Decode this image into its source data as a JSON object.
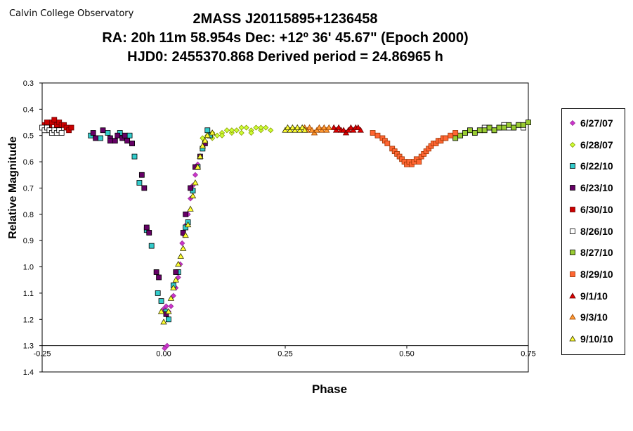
{
  "header": {
    "observatory": "Calvin College Observatory",
    "title_line1": "2MASS J20115895+1236458",
    "title_line2": "RA: 20h 11m 58.954s    Dec: +12º 36' 45.67\"  (Epoch 2000)",
    "title_line3": "HJD0: 2455370.868     Derived period = 24.86965 h"
  },
  "chart_data": {
    "type": "scatter",
    "title": "2MASS J20115895+1236458",
    "xlabel": "Phase",
    "ylabel": "Relative Magnitude",
    "xlim": [
      -0.25,
      0.75
    ],
    "ylim": [
      0.3,
      1.4
    ],
    "y_inverted": true,
    "x_ticks": [
      "-0.25",
      "0.00",
      "0.25",
      "0.50",
      "0.75"
    ],
    "y_ticks": [
      "0.3",
      "0.4",
      "0.5",
      "0.6",
      "0.7",
      "0.8",
      "0.9",
      "1.0",
      "1.1",
      "1.2",
      "1.3",
      "1.4"
    ],
    "grid": false,
    "legend_position": "right",
    "series": [
      {
        "name": "6/27/07",
        "marker": "diamond",
        "color": "#cc33cc",
        "stroke": "#993399",
        "points": [
          [
            0.002,
            1.31
          ],
          [
            0.007,
            1.3
          ],
          [
            0.0,
            1.16
          ],
          [
            0.005,
            1.15
          ],
          [
            0.01,
            1.17
          ],
          [
            0.015,
            1.15
          ],
          [
            0.02,
            1.11
          ],
          [
            0.025,
            1.08
          ],
          [
            0.03,
            1.04
          ],
          [
            0.034,
            0.99
          ],
          [
            0.038,
            0.91
          ],
          [
            0.042,
            0.88
          ],
          [
            0.046,
            0.84
          ],
          [
            0.05,
            0.8
          ],
          [
            0.055,
            0.74
          ],
          [
            0.06,
            0.69
          ],
          [
            0.065,
            0.65
          ],
          [
            0.07,
            0.61
          ]
        ]
      },
      {
        "name": "6/28/07",
        "marker": "diamond",
        "color": "#ccff33",
        "stroke": "#889900",
        "points": [
          [
            0.08,
            0.51
          ],
          [
            0.09,
            0.5
          ],
          [
            0.1,
            0.49
          ],
          [
            0.11,
            0.5
          ],
          [
            0.12,
            0.49
          ],
          [
            0.13,
            0.48
          ],
          [
            0.14,
            0.49
          ],
          [
            0.15,
            0.48
          ],
          [
            0.16,
            0.49
          ],
          [
            0.17,
            0.47
          ],
          [
            0.18,
            0.48
          ],
          [
            0.19,
            0.47
          ],
          [
            0.2,
            0.48
          ],
          [
            0.21,
            0.47
          ],
          [
            0.22,
            0.48
          ],
          [
            0.1,
            0.51
          ],
          [
            0.12,
            0.5
          ],
          [
            0.14,
            0.48
          ],
          [
            0.16,
            0.47
          ],
          [
            0.18,
            0.49
          ],
          [
            0.2,
            0.47
          ]
        ]
      },
      {
        "name": "6/22/10",
        "marker": "square",
        "color": "#33cccc",
        "stroke": "#000000",
        "points": [
          [
            -0.15,
            0.5
          ],
          [
            -0.13,
            0.51
          ],
          [
            -0.115,
            0.49
          ],
          [
            -0.09,
            0.49
          ],
          [
            -0.07,
            0.5
          ],
          [
            -0.065,
            0.53
          ],
          [
            -0.06,
            0.58
          ],
          [
            -0.05,
            0.68
          ],
          [
            -0.035,
            0.86
          ],
          [
            -0.025,
            0.92
          ],
          [
            -0.012,
            1.1
          ],
          [
            -0.005,
            1.13
          ],
          [
            0.005,
            1.17
          ],
          [
            0.01,
            1.2
          ],
          [
            0.02,
            1.07
          ],
          [
            0.03,
            1.02
          ],
          [
            0.045,
            0.85
          ],
          [
            0.05,
            0.83
          ],
          [
            0.06,
            0.71
          ],
          [
            0.07,
            0.62
          ],
          [
            0.08,
            0.55
          ],
          [
            0.09,
            0.48
          ],
          [
            0.095,
            0.5
          ]
        ]
      },
      {
        "name": "6/23/10",
        "marker": "square",
        "color": "#660066",
        "stroke": "#000000",
        "points": [
          [
            -0.145,
            0.49
          ],
          [
            -0.14,
            0.51
          ],
          [
            -0.125,
            0.48
          ],
          [
            -0.11,
            0.51
          ],
          [
            -0.11,
            0.52
          ],
          [
            -0.1,
            0.52
          ],
          [
            -0.095,
            0.5
          ],
          [
            -0.085,
            0.51
          ],
          [
            -0.08,
            0.5
          ],
          [
            -0.075,
            0.52
          ],
          [
            -0.065,
            0.53
          ],
          [
            -0.045,
            0.65
          ],
          [
            -0.04,
            0.7
          ],
          [
            -0.035,
            0.85
          ],
          [
            -0.03,
            0.87
          ],
          [
            -0.015,
            1.02
          ],
          [
            -0.01,
            1.04
          ],
          [
            0.005,
            1.18
          ],
          [
            0.025,
            1.02
          ],
          [
            0.04,
            0.87
          ],
          [
            0.045,
            0.8
          ],
          [
            0.055,
            0.7
          ],
          [
            0.065,
            0.62
          ],
          [
            0.075,
            0.58
          ],
          [
            0.085,
            0.53
          ]
        ]
      },
      {
        "name": "6/30/10",
        "marker": "square",
        "color": "#cc0000",
        "stroke": "#660000",
        "points": [
          [
            -0.245,
            0.46
          ],
          [
            -0.24,
            0.45
          ],
          [
            -0.235,
            0.47
          ],
          [
            -0.23,
            0.45
          ],
          [
            -0.225,
            0.44
          ],
          [
            -0.22,
            0.46
          ],
          [
            -0.215,
            0.45
          ],
          [
            -0.21,
            0.46
          ],
          [
            -0.205,
            0.46
          ],
          [
            -0.2,
            0.47
          ],
          [
            -0.195,
            0.48
          ],
          [
            -0.19,
            0.47
          ]
        ]
      },
      {
        "name": "8/26/10",
        "marker": "square",
        "color": "#ffffff",
        "stroke": "#000000",
        "points": [
          [
            -0.25,
            0.47
          ],
          [
            -0.245,
            0.48
          ],
          [
            -0.24,
            0.47
          ],
          [
            -0.235,
            0.48
          ],
          [
            -0.23,
            0.49
          ],
          [
            -0.225,
            0.48
          ],
          [
            -0.22,
            0.49
          ],
          [
            -0.215,
            0.48
          ],
          [
            -0.21,
            0.49
          ],
          [
            0.66,
            0.47
          ],
          [
            0.67,
            0.47
          ],
          [
            0.68,
            0.48
          ],
          [
            0.69,
            0.47
          ],
          [
            0.7,
            0.46
          ],
          [
            0.71,
            0.47
          ],
          [
            0.72,
            0.47
          ],
          [
            0.73,
            0.46
          ],
          [
            0.74,
            0.47
          ]
        ]
      },
      {
        "name": "8/27/10",
        "marker": "square",
        "color": "#99cc33",
        "stroke": "#000000",
        "points": [
          [
            0.6,
            0.51
          ],
          [
            0.61,
            0.5
          ],
          [
            0.62,
            0.49
          ],
          [
            0.63,
            0.48
          ],
          [
            0.64,
            0.49
          ],
          [
            0.65,
            0.48
          ],
          [
            0.66,
            0.48
          ],
          [
            0.67,
            0.47
          ],
          [
            0.68,
            0.48
          ],
          [
            0.69,
            0.47
          ],
          [
            0.7,
            0.47
          ],
          [
            0.71,
            0.46
          ],
          [
            0.72,
            0.47
          ],
          [
            0.73,
            0.46
          ],
          [
            0.74,
            0.46
          ],
          [
            0.75,
            0.45
          ]
        ]
      },
      {
        "name": "8/29/10",
        "marker": "square",
        "color": "#ff6633",
        "stroke": "#993300",
        "points": [
          [
            0.43,
            0.49
          ],
          [
            0.44,
            0.5
          ],
          [
            0.45,
            0.51
          ],
          [
            0.455,
            0.52
          ],
          [
            0.46,
            0.53
          ],
          [
            0.47,
            0.55
          ],
          [
            0.475,
            0.56
          ],
          [
            0.48,
            0.57
          ],
          [
            0.485,
            0.58
          ],
          [
            0.49,
            0.59
          ],
          [
            0.495,
            0.6
          ],
          [
            0.5,
            0.61
          ],
          [
            0.505,
            0.6
          ],
          [
            0.51,
            0.61
          ],
          [
            0.515,
            0.6
          ],
          [
            0.52,
            0.59
          ],
          [
            0.525,
            0.6
          ],
          [
            0.53,
            0.58
          ],
          [
            0.535,
            0.57
          ],
          [
            0.54,
            0.56
          ],
          [
            0.545,
            0.55
          ],
          [
            0.55,
            0.54
          ],
          [
            0.555,
            0.53
          ],
          [
            0.56,
            0.53
          ],
          [
            0.565,
            0.52
          ],
          [
            0.57,
            0.52
          ],
          [
            0.575,
            0.51
          ],
          [
            0.58,
            0.51
          ],
          [
            0.59,
            0.5
          ],
          [
            0.6,
            0.49
          ]
        ]
      },
      {
        "name": "9/1/10",
        "marker": "triangle",
        "color": "#dd0000",
        "stroke": "#660000",
        "points": [
          [
            0.35,
            0.47
          ],
          [
            0.355,
            0.48
          ],
          [
            0.36,
            0.47
          ],
          [
            0.365,
            0.48
          ],
          [
            0.37,
            0.48
          ],
          [
            0.375,
            0.49
          ],
          [
            0.38,
            0.48
          ],
          [
            0.385,
            0.47
          ],
          [
            0.39,
            0.48
          ],
          [
            0.395,
            0.47
          ],
          [
            0.4,
            0.47
          ],
          [
            0.405,
            0.48
          ]
        ]
      },
      {
        "name": "9/3/10",
        "marker": "triangle",
        "color": "#ff9933",
        "stroke": "#994400",
        "points": [
          [
            0.29,
            0.47
          ],
          [
            0.295,
            0.48
          ],
          [
            0.3,
            0.47
          ],
          [
            0.305,
            0.48
          ],
          [
            0.31,
            0.49
          ],
          [
            0.315,
            0.48
          ],
          [
            0.32,
            0.47
          ],
          [
            0.325,
            0.48
          ],
          [
            0.33,
            0.47
          ],
          [
            0.335,
            0.48
          ],
          [
            0.34,
            0.47
          ]
        ]
      },
      {
        "name": "9/10/10",
        "marker": "triangle",
        "color": "#ffff33",
        "stroke": "#333300",
        "points": [
          [
            -0.005,
            1.17
          ],
          [
            0.0,
            1.21
          ],
          [
            0.01,
            1.17
          ],
          [
            0.015,
            1.12
          ],
          [
            0.02,
            1.08
          ],
          [
            0.025,
            1.05
          ],
          [
            0.03,
            0.99
          ],
          [
            0.035,
            0.96
          ],
          [
            0.04,
            0.93
          ],
          [
            0.045,
            0.88
          ],
          [
            0.05,
            0.84
          ],
          [
            0.055,
            0.78
          ],
          [
            0.06,
            0.73
          ],
          [
            0.065,
            0.68
          ],
          [
            0.07,
            0.62
          ],
          [
            0.075,
            0.58
          ],
          [
            0.08,
            0.54
          ],
          [
            0.085,
            0.52
          ],
          [
            0.09,
            0.5
          ],
          [
            0.1,
            0.49
          ],
          [
            0.25,
            0.48
          ],
          [
            0.255,
            0.47
          ],
          [
            0.26,
            0.48
          ],
          [
            0.265,
            0.47
          ],
          [
            0.27,
            0.48
          ],
          [
            0.275,
            0.47
          ],
          [
            0.28,
            0.48
          ],
          [
            0.285,
            0.47
          ],
          [
            0.29,
            0.48
          ]
        ]
      }
    ]
  }
}
